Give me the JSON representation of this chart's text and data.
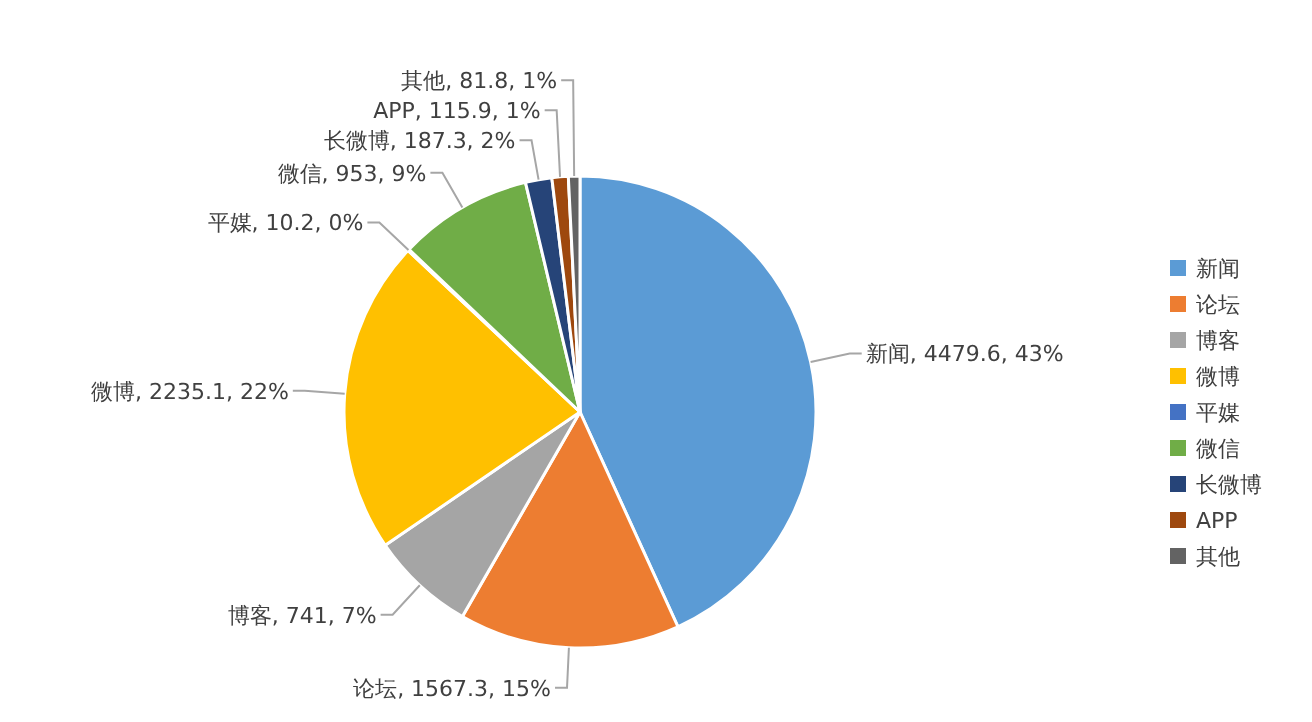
{
  "chart_data": {
    "type": "pie",
    "categories": [
      "新闻",
      "论坛",
      "博客",
      "微博",
      "平媒",
      "微信",
      "长微博",
      "APP",
      "其他"
    ],
    "values": [
      4479.6,
      1567.3,
      741,
      2235.1,
      10.2,
      953,
      187.3,
      115.9,
      81.8
    ],
    "value_labels": [
      "新闻, 4479.6, 43%",
      "论坛, 1567.3, 15%",
      "博客, 741, 7%",
      "微博, 2235.1, 22%",
      "平媒, 10.2, 0%",
      "微信, 953, 9%",
      "长微博, 187.3, 2%",
      "APP, 115.9, 1%",
      "其他, 81.8, 1%"
    ],
    "colors": [
      "#5b9bd5",
      "#ed7d31",
      "#a5a5a5",
      "#ffc000",
      "#4472c4",
      "#70ad47",
      "#264478",
      "#9e480e",
      "#636363"
    ],
    "legend": "right"
  }
}
